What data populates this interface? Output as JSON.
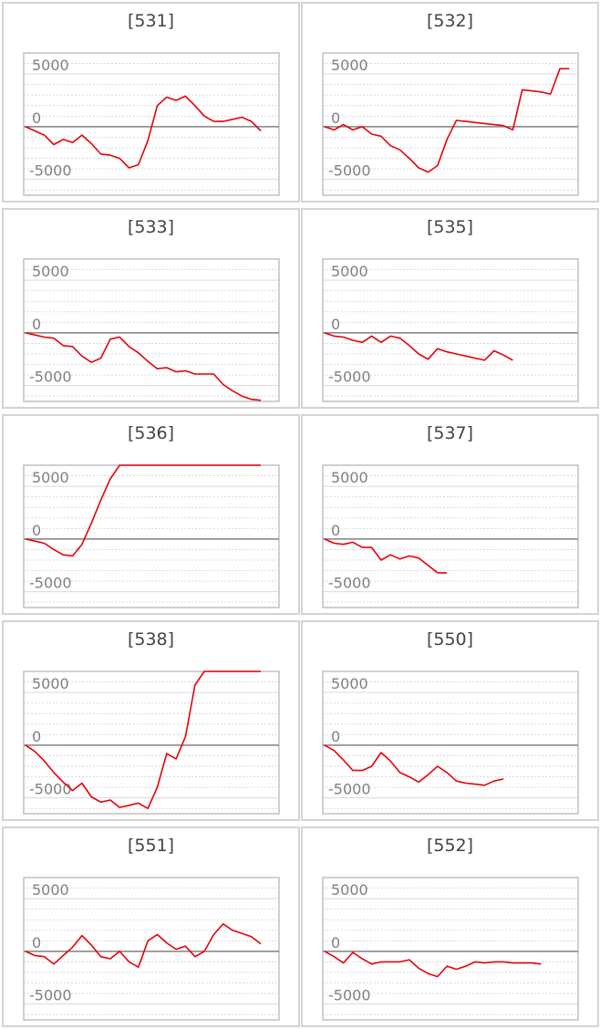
{
  "colors": {
    "line": "#e8000b",
    "zero_line": "#808080",
    "grid": "#d9d9d9",
    "frame": "#c0c0c0",
    "tick_text": "#808080",
    "panel_border": "#d4d4d4"
  },
  "chart_data": [
    {
      "type": "line",
      "title": "[531]",
      "ylim": [
        -6500,
        7000
      ],
      "yticks": [
        5000,
        0,
        -5000
      ],
      "grid": true,
      "values": [
        0,
        -400,
        -800,
        -1700,
        -1200,
        -1500,
        -800,
        -1600,
        -2600,
        -2700,
        -3000,
        -3900,
        -3600,
        -1300,
        2000,
        2800,
        2500,
        2900,
        2000,
        1000,
        500,
        500,
        700,
        900,
        500,
        -400
      ]
    },
    {
      "type": "line",
      "title": "[532]",
      "ylim": [
        -6500,
        7000
      ],
      "yticks": [
        5000,
        0,
        -5000
      ],
      "grid": true,
      "values": [
        0,
        -300,
        200,
        -300,
        0,
        -700,
        -900,
        -1800,
        -2200,
        -3000,
        -3900,
        -4300,
        -3700,
        -1200,
        600,
        500,
        400,
        300,
        200,
        100,
        -300,
        3500,
        3400,
        3300,
        3100,
        5500,
        5500
      ]
    },
    {
      "type": "line",
      "title": "[533]",
      "ylim": [
        -6500,
        7000
      ],
      "yticks": [
        5000,
        0,
        -5000
      ],
      "grid": true,
      "values": [
        0,
        -200,
        -400,
        -500,
        -1200,
        -1300,
        -2200,
        -2800,
        -2400,
        -600,
        -400,
        -1300,
        -1900,
        -2700,
        -3400,
        -3300,
        -3700,
        -3600,
        -3900,
        -3900,
        -3900,
        -4900,
        -5500,
        -6000,
        -6300,
        -6400
      ]
    },
    {
      "type": "line",
      "title": "[535]",
      "ylim": [
        -6500,
        7000
      ],
      "yticks": [
        5000,
        0,
        -5000
      ],
      "grid": true,
      "values": [
        0,
        -300,
        -400,
        -700,
        -900,
        -300,
        -900,
        -300,
        -500,
        -1200,
        -2000,
        -2500,
        -1500,
        -1800,
        -2000,
        -2200,
        -2400,
        -2600,
        -1700,
        -2100,
        -2600
      ]
    },
    {
      "type": "line",
      "title": "[536]",
      "ylim": [
        -6500,
        7000
      ],
      "yticks": [
        5000,
        0,
        -5000
      ],
      "grid": true,
      "values": [
        0,
        -200,
        -400,
        -1000,
        -1500,
        -1600,
        -500,
        1500,
        3700,
        5700,
        7000,
        7000,
        7000,
        7000,
        7000,
        7000,
        7000,
        7000,
        7000,
        7000,
        7000,
        7000,
        7000,
        7000,
        7000,
        7000
      ]
    },
    {
      "type": "line",
      "title": "[537]",
      "ylim": [
        -6500,
        7000
      ],
      "yticks": [
        5000,
        0,
        -5000
      ],
      "grid": true,
      "values": [
        0,
        -400,
        -500,
        -300,
        -800,
        -800,
        -2000,
        -1500,
        -1900,
        -1600,
        -1800,
        -2500,
        -3200,
        -3200
      ]
    },
    {
      "type": "line",
      "title": "[538]",
      "ylim": [
        -6500,
        7000
      ],
      "yticks": [
        5000,
        0,
        -5000
      ],
      "grid": true,
      "values": [
        0,
        -600,
        -1500,
        -2600,
        -3500,
        -4300,
        -3600,
        -4900,
        -5400,
        -5200,
        -5900,
        -5700,
        -5500,
        -6000,
        -4000,
        -800,
        -1300,
        800,
        5700,
        8300,
        8100,
        7600,
        8100,
        8500,
        8500,
        8500
      ]
    },
    {
      "type": "line",
      "title": "[550]",
      "ylim": [
        -6500,
        7000
      ],
      "yticks": [
        5000,
        0,
        -5000
      ],
      "grid": true,
      "values": [
        0,
        -500,
        -1400,
        -2400,
        -2400,
        -2000,
        -700,
        -1500,
        -2600,
        -3000,
        -3500,
        -2800,
        -2000,
        -2600,
        -3400,
        -3600,
        -3700,
        -3800,
        -3400,
        -3200
      ]
    },
    {
      "type": "line",
      "title": "[551]",
      "ylim": [
        -6500,
        7000
      ],
      "yticks": [
        5000,
        0,
        -5000
      ],
      "grid": true,
      "values": [
        0,
        -400,
        -500,
        -1200,
        -400,
        400,
        1500,
        600,
        -500,
        -700,
        0,
        -1000,
        -1500,
        1000,
        1600,
        800,
        200,
        500,
        -500,
        0,
        1600,
        2600,
        2000,
        1700,
        1400,
        700
      ]
    },
    {
      "type": "line",
      "title": "[552]",
      "ylim": [
        -6500,
        7000
      ],
      "yticks": [
        5000,
        0,
        -5000
      ],
      "grid": true,
      "values": [
        0,
        -500,
        -1100,
        -100,
        -700,
        -1200,
        -1000,
        -1000,
        -1000,
        -800,
        -1600,
        -2100,
        -2400,
        -1400,
        -1700,
        -1400,
        -1000,
        -1100,
        -1000,
        -1000,
        -1100,
        -1100,
        -1100,
        -1200
      ]
    }
  ]
}
